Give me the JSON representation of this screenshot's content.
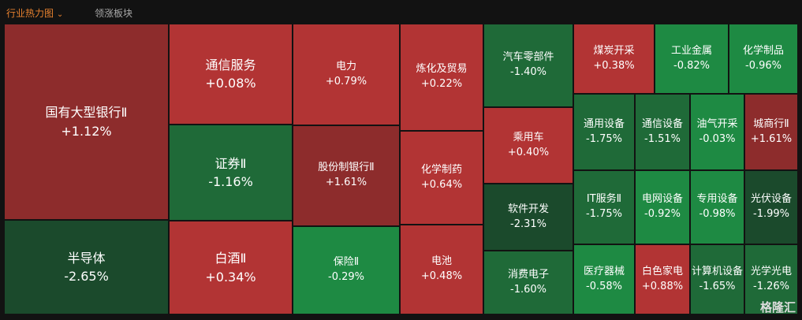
{
  "tabs": [
    "行业热力图",
    "领涨板块"
  ],
  "tiles": [
    {
      "name": "国有大型银行Ⅱ",
      "change": "+1.12%",
      "color": "#8d2c2c"
    },
    {
      "name": "半导体",
      "change": "-2.65%",
      "color": "#1b4a2c"
    },
    {
      "name": "通信服务",
      "change": "+0.08%",
      "color": "#b23434"
    },
    {
      "name": "证券Ⅱ",
      "change": "-1.16%",
      "color": "#1f6a38"
    },
    {
      "name": "白酒Ⅱ",
      "change": "+0.34%",
      "color": "#b23434"
    },
    {
      "name": "电力",
      "change": "+0.79%",
      "color": "#b23434"
    },
    {
      "name": "股份制银行Ⅱ",
      "change": "+1.61%",
      "color": "#8d2c2c"
    },
    {
      "name": "保险Ⅱ",
      "change": "-0.29%",
      "color": "#1e8a43"
    },
    {
      "name": "炼化及贸易",
      "change": "+0.22%",
      "color": "#b23434"
    },
    {
      "name": "化学制药",
      "change": "+0.64%",
      "color": "#b23434"
    },
    {
      "name": "电池",
      "change": "+0.48%",
      "color": "#b23434"
    },
    {
      "name": "汽车零部件",
      "change": "-1.40%",
      "color": "#1f6a38"
    },
    {
      "name": "乘用车",
      "change": "+0.40%",
      "color": "#b23434"
    },
    {
      "name": "软件开发",
      "change": "-2.31%",
      "color": "#1b4a2c"
    },
    {
      "name": "消费电子",
      "change": "-1.60%",
      "color": "#1f6a38"
    },
    {
      "name": "煤炭开采",
      "change": "+0.38%",
      "color": "#b23434"
    },
    {
      "name": "工业金属",
      "change": "-0.82%",
      "color": "#1e8a43"
    },
    {
      "name": "化学制品",
      "change": "-0.96%",
      "color": "#1e8a43"
    },
    {
      "name": "通用设备",
      "change": "-1.75%",
      "color": "#1f6a38"
    },
    {
      "name": "通信设备",
      "change": "-1.51%",
      "color": "#1f6a38"
    },
    {
      "name": "油气开采",
      "change": "-0.03%",
      "color": "#1e8a43"
    },
    {
      "name": "城商行Ⅱ",
      "change": "+1.61%",
      "color": "#8d2c2c"
    },
    {
      "name": "IT服务Ⅱ",
      "change": "-1.75%",
      "color": "#1f6a38"
    },
    {
      "name": "电网设备",
      "change": "-0.92%",
      "color": "#1e8a43"
    },
    {
      "name": "专用设备",
      "change": "-0.98%",
      "color": "#1e8a43"
    },
    {
      "name": "光伏设备",
      "change": "-1.99%",
      "color": "#1b4a2c"
    },
    {
      "name": "医疗器械",
      "change": "-0.58%",
      "color": "#1e8a43"
    },
    {
      "name": "白色家电",
      "change": "+0.88%",
      "color": "#b23434"
    },
    {
      "name": "计算机设备",
      "change": "-1.65%",
      "color": "#1f6a38"
    },
    {
      "name": "光学光电",
      "change": "-1.26%",
      "color": "#1f6a38"
    }
  ],
  "watermark": "格隆汇"
}
